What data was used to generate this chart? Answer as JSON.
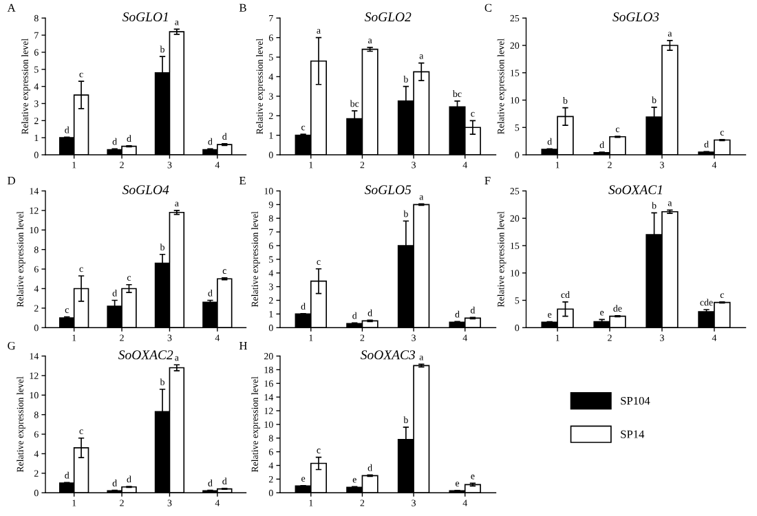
{
  "chart_data": [
    {
      "type": "bar",
      "title": "SoGLO1",
      "annotations": [
        "A"
      ],
      "ylabel": "Relative expression level",
      "categories": [
        "1",
        "2",
        "3",
        "4"
      ],
      "ylim": [
        0,
        8
      ],
      "yticks": [
        0,
        1,
        2,
        3,
        4,
        5,
        6,
        7,
        8
      ],
      "series": [
        {
          "color": "#000000",
          "values": [
            1,
            0.3,
            4.8,
            0.3
          ],
          "errors": [
            0.03,
            0.05,
            0.95,
            0.05
          ],
          "value_labels": [
            "d",
            "d",
            "b",
            "d"
          ]
        },
        {
          "color": "#ffffff",
          "values": [
            3.5,
            0.5,
            7.2,
            0.6
          ],
          "errors": [
            0.8,
            0.03,
            0.15,
            0.05
          ],
          "value_labels": [
            "c",
            "d",
            "a",
            "d"
          ]
        }
      ]
    },
    {
      "type": "bar",
      "title": "SoGLO2",
      "annotations": [
        "B"
      ],
      "ylabel": "Relative expression level",
      "categories": [
        "1",
        "2",
        "3",
        "4"
      ],
      "ylim": [
        0,
        7
      ],
      "yticks": [
        0,
        1,
        2,
        3,
        4,
        5,
        6,
        7
      ],
      "series": [
        {
          "color": "#000000",
          "values": [
            1,
            1.85,
            2.75,
            2.45
          ],
          "errors": [
            0.05,
            0.4,
            0.75,
            0.3
          ],
          "value_labels": [
            "c",
            "bc",
            "b",
            "bc"
          ]
        },
        {
          "color": "#ffffff",
          "values": [
            4.8,
            5.4,
            4.25,
            1.4
          ],
          "errors": [
            1.2,
            0.1,
            0.45,
            0.35
          ],
          "value_labels": [
            "a",
            "a",
            "a",
            "c"
          ]
        }
      ]
    },
    {
      "type": "bar",
      "title": "SoGLO3",
      "annotations": [
        "C"
      ],
      "ylabel": "Relative expression level",
      "categories": [
        "1",
        "2",
        "3",
        "4"
      ],
      "ylim": [
        0,
        25
      ],
      "yticks": [
        0,
        5,
        10,
        15,
        20,
        25
      ],
      "series": [
        {
          "color": "#000000",
          "values": [
            1,
            0.4,
            6.9,
            0.5
          ],
          "errors": [
            0.1,
            0.1,
            1.8,
            0.1
          ],
          "value_labels": [
            "d",
            "d",
            "b",
            "d"
          ]
        },
        {
          "color": "#ffffff",
          "values": [
            7.0,
            3.3,
            20.0,
            2.7
          ],
          "errors": [
            1.6,
            0.1,
            0.9,
            0.1
          ],
          "value_labels": [
            "b",
            "c",
            "a",
            "c"
          ]
        }
      ]
    },
    {
      "type": "bar",
      "title": "SoGLO4",
      "annotations": [
        "D"
      ],
      "ylabel": "Relative expression level",
      "categories": [
        "1",
        "2",
        "3",
        "4"
      ],
      "ylim": [
        0,
        14
      ],
      "yticks": [
        0,
        2,
        4,
        6,
        8,
        10,
        12,
        14
      ],
      "series": [
        {
          "color": "#000000",
          "values": [
            1,
            2.2,
            6.6,
            2.6
          ],
          "errors": [
            0.1,
            0.6,
            0.9,
            0.2
          ],
          "value_labels": [
            "c",
            "d",
            "b",
            "d"
          ]
        },
        {
          "color": "#ffffff",
          "values": [
            4.0,
            4.0,
            11.8,
            5.0
          ],
          "errors": [
            1.3,
            0.4,
            0.2,
            0.1
          ],
          "value_labels": [
            "c",
            "c",
            "a",
            "c"
          ]
        }
      ]
    },
    {
      "type": "bar",
      "title": "SoGLO5",
      "annotations": [
        "E"
      ],
      "ylabel": "Relative expression level",
      "categories": [
        "1",
        "2",
        "3",
        "4"
      ],
      "ylim": [
        0,
        10
      ],
      "yticks": [
        0,
        1,
        2,
        3,
        4,
        5,
        6,
        7,
        8,
        9,
        10
      ],
      "series": [
        {
          "color": "#000000",
          "values": [
            1,
            0.3,
            6.0,
            0.4
          ],
          "errors": [
            0.03,
            0.05,
            1.8,
            0.05
          ],
          "value_labels": [
            "d",
            "d",
            "b",
            "d"
          ]
        },
        {
          "color": "#ffffff",
          "values": [
            3.4,
            0.5,
            9.0,
            0.7
          ],
          "errors": [
            0.9,
            0.05,
            0.05,
            0.05
          ],
          "value_labels": [
            "c",
            "d",
            "a",
            "d"
          ]
        }
      ]
    },
    {
      "type": "bar",
      "title": "SoOXAC1",
      "annotations": [
        "F"
      ],
      "ylabel": "Relative expression level",
      "categories": [
        "1",
        "2",
        "3",
        "4"
      ],
      "ylim": [
        0,
        25
      ],
      "yticks": [
        0,
        5,
        10,
        15,
        20,
        25
      ],
      "series": [
        {
          "color": "#000000",
          "values": [
            1,
            1.1,
            17.0,
            2.9
          ],
          "errors": [
            0.1,
            0.4,
            4.0,
            0.4
          ],
          "value_labels": [
            "e",
            "e",
            "b",
            "cde"
          ]
        },
        {
          "color": "#ffffff",
          "values": [
            3.4,
            2.1,
            21.2,
            4.6
          ],
          "errors": [
            1.3,
            0.1,
            0.3,
            0.1
          ],
          "value_labels": [
            "cd",
            "de",
            "a",
            "c"
          ]
        }
      ]
    },
    {
      "type": "bar",
      "title": "SoOXAC2",
      "annotations": [
        "G"
      ],
      "ylabel": "Relative expression level",
      "categories": [
        "1",
        "2",
        "3",
        "4"
      ],
      "ylim": [
        0,
        14
      ],
      "yticks": [
        0,
        2,
        4,
        6,
        8,
        10,
        12,
        14
      ],
      "series": [
        {
          "color": "#000000",
          "values": [
            1,
            0.2,
            8.3,
            0.2
          ],
          "errors": [
            0.05,
            0.05,
            2.3,
            0.05
          ],
          "value_labels": [
            "d",
            "d",
            "b",
            "d"
          ]
        },
        {
          "color": "#ffffff",
          "values": [
            4.6,
            0.6,
            12.8,
            0.4
          ],
          "errors": [
            1.0,
            0.05,
            0.3,
            0.05
          ],
          "value_labels": [
            "c",
            "d",
            "a",
            "d"
          ]
        }
      ]
    },
    {
      "type": "bar",
      "title": "SoOXAC3",
      "annotations": [
        "H"
      ],
      "ylabel": "Relative expression level",
      "categories": [
        "1",
        "2",
        "3",
        "4"
      ],
      "ylim": [
        0,
        20
      ],
      "yticks": [
        0,
        2,
        4,
        6,
        8,
        10,
        12,
        14,
        16,
        18,
        20
      ],
      "legend": "right",
      "series": [
        {
          "name": "SP104",
          "color": "#000000",
          "values": [
            1,
            0.8,
            7.8,
            0.3
          ],
          "errors": [
            0.05,
            0.1,
            1.8,
            0.05
          ],
          "value_labels": [
            "e",
            "e",
            "b",
            "e"
          ]
        },
        {
          "name": "SP14",
          "color": "#ffffff",
          "values": [
            4.3,
            2.5,
            18.6,
            1.2
          ],
          "errors": [
            0.9,
            0.1,
            0.2,
            0.2
          ],
          "value_labels": [
            "c",
            "d",
            "a",
            "e"
          ]
        }
      ]
    }
  ]
}
